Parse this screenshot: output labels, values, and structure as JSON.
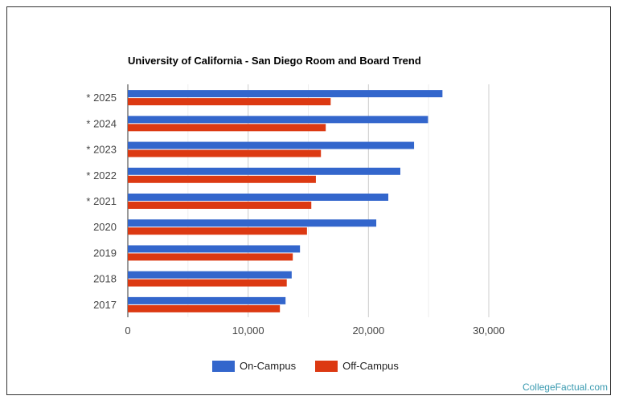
{
  "chart_data": {
    "type": "bar",
    "orientation": "horizontal",
    "title": "University of California - San Diego Room and Board Trend",
    "categories": [
      "* 2025",
      "* 2024",
      "* 2023",
      "* 2022",
      "* 2021",
      "2020",
      "2019",
      "2018",
      "2017"
    ],
    "series": [
      {
        "name": "On-Campus",
        "color": "#3366cc",
        "values": [
          26150,
          24950,
          23790,
          22650,
          21650,
          20650,
          14310,
          13620,
          13110
        ]
      },
      {
        "name": "Off-Campus",
        "color": "#dc3912",
        "values": [
          16860,
          16450,
          16050,
          15630,
          15250,
          14890,
          13710,
          13210,
          12640
        ]
      }
    ],
    "xlim": [
      0,
      30000
    ],
    "x_ticks": [
      0,
      10000,
      20000,
      30000
    ],
    "x_tick_labels": [
      "0",
      "10,000",
      "20,000",
      "30,000"
    ],
    "grid": true,
    "legend": "bottom"
  },
  "footer": "CollegeFactual.com"
}
